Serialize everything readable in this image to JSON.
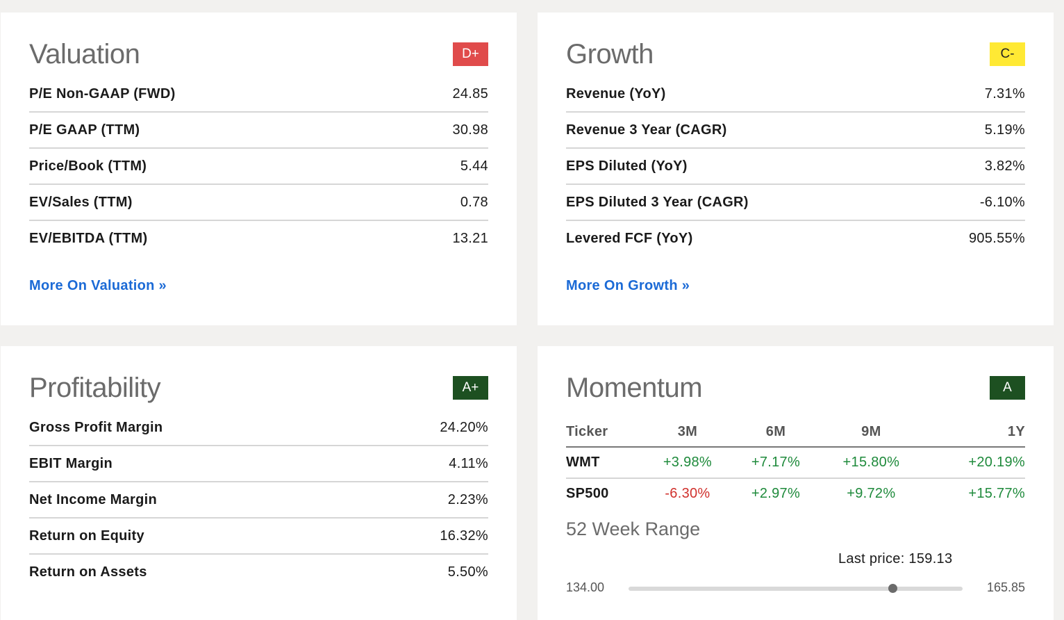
{
  "valuation": {
    "title": "Valuation",
    "grade": "D+",
    "rows": [
      {
        "label": "P/E Non-GAAP (FWD)",
        "value": "24.85"
      },
      {
        "label": "P/E GAAP (TTM)",
        "value": "30.98"
      },
      {
        "label": "Price/Book (TTM)",
        "value": "5.44"
      },
      {
        "label": "EV/Sales (TTM)",
        "value": "0.78"
      },
      {
        "label": "EV/EBITDA (TTM)",
        "value": "13.21"
      }
    ],
    "link": "More On Valuation »"
  },
  "growth": {
    "title": "Growth",
    "grade": "C-",
    "rows": [
      {
        "label": "Revenue (YoY)",
        "value": "7.31%"
      },
      {
        "label": "Revenue 3 Year (CAGR)",
        "value": "5.19%"
      },
      {
        "label": "EPS Diluted (YoY)",
        "value": "3.82%"
      },
      {
        "label": "EPS Diluted 3 Year (CAGR)",
        "value": "-6.10%"
      },
      {
        "label": "Levered FCF (YoY)",
        "value": "905.55%"
      }
    ],
    "link": "More On Growth »"
  },
  "profitability": {
    "title": "Profitability",
    "grade": "A+",
    "rows": [
      {
        "label": "Gross Profit Margin",
        "value": "24.20%"
      },
      {
        "label": "EBIT Margin",
        "value": "4.11%"
      },
      {
        "label": "Net Income Margin",
        "value": "2.23%"
      },
      {
        "label": "Return on Equity",
        "value": "16.32%"
      },
      {
        "label": "Return on Assets",
        "value": "5.50%"
      }
    ]
  },
  "momentum": {
    "title": "Momentum",
    "grade": "A",
    "headers": [
      "Ticker",
      "3M",
      "6M",
      "9M",
      "1Y"
    ],
    "rows": [
      {
        "ticker": "WMT",
        "m3": "+3.98%",
        "m6": "+7.17%",
        "m9": "+15.80%",
        "y1": "+20.19%"
      },
      {
        "ticker": "SP500",
        "m3": "-6.30%",
        "m6": "+2.97%",
        "m9": "+9.72%",
        "y1": "+15.77%"
      }
    ],
    "range": {
      "title": "52 Week Range",
      "last_price_label": "Last price: 159.13",
      "low": "134.00",
      "high": "165.85",
      "low_value": 134.0,
      "high_value": 165.85,
      "last_value": 159.13
    }
  },
  "colors": {
    "grade_d_plus": "#e04b4b",
    "grade_c_minus": "#ffe934",
    "grade_a": "#1d5021",
    "positive": "#1e8a3b",
    "negative": "#d0312d",
    "link": "#1b6ad6"
  }
}
